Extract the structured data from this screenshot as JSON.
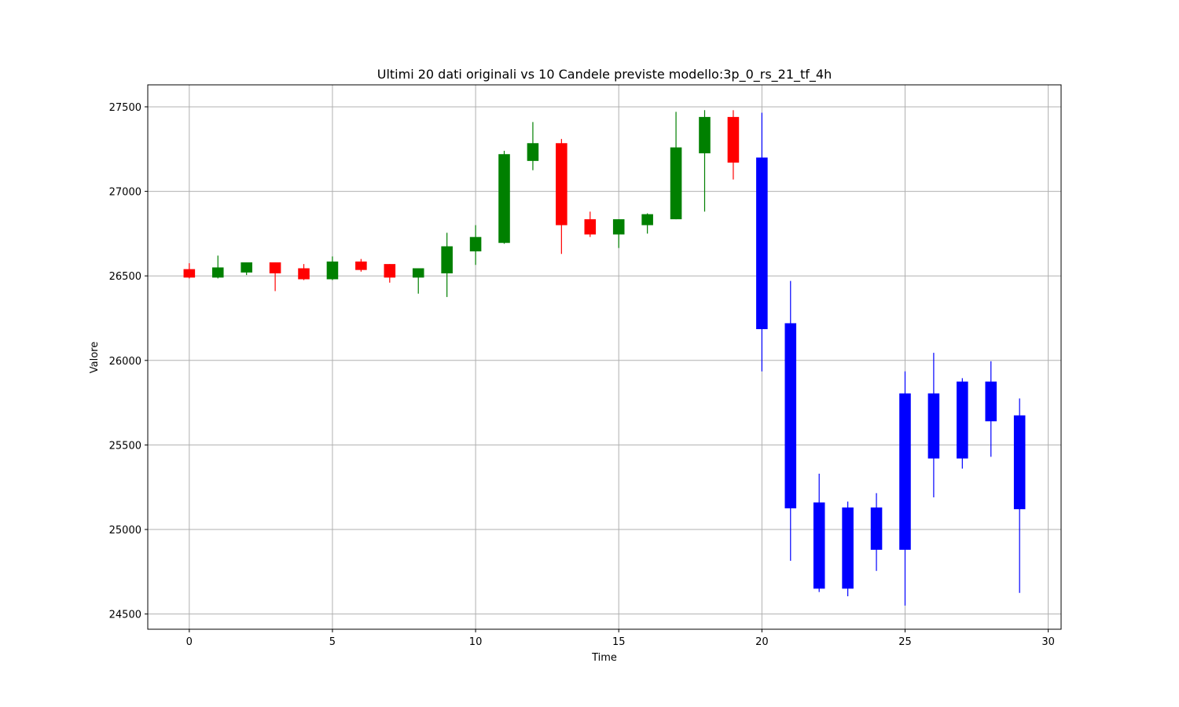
{
  "chart_data": {
    "type": "candlestick",
    "title": "Ultimi 20 dati originali vs 10 Candele previste modello:3p_0_rs_21_tf_4h",
    "xlabel": "Time",
    "ylabel": "Valore",
    "xlim": [
      -1.45,
      30.45
    ],
    "ylim": [
      24410,
      27630
    ],
    "x_ticks": [
      0,
      5,
      10,
      15,
      20,
      25,
      30
    ],
    "y_ticks": [
      24500,
      25000,
      25500,
      26000,
      26500,
      27000,
      27500
    ],
    "grid": true,
    "colors": {
      "up": "#008000",
      "down": "#ff0000",
      "forecast": "#0000ff",
      "grid": "#b0b0b0",
      "axes": "#000000"
    },
    "series": [
      {
        "name": "",
        "kind": "original",
        "candles": [
          {
            "x": 0,
            "open": 26540,
            "high": 26575,
            "low": 26485,
            "close": 26490
          },
          {
            "x": 1,
            "open": 26490,
            "high": 26620,
            "low": 26485,
            "close": 26550
          },
          {
            "x": 2,
            "open": 26520,
            "high": 26580,
            "low": 26505,
            "close": 26580
          },
          {
            "x": 3,
            "open": 26580,
            "high": 26580,
            "low": 26410,
            "close": 26515
          },
          {
            "x": 4,
            "open": 26545,
            "high": 26570,
            "low": 26475,
            "close": 26480
          },
          {
            "x": 5,
            "open": 26480,
            "high": 26615,
            "low": 26475,
            "close": 26585
          },
          {
            "x": 6,
            "open": 26585,
            "high": 26600,
            "low": 26525,
            "close": 26535
          },
          {
            "x": 7,
            "open": 26570,
            "high": 26570,
            "low": 26460,
            "close": 26490
          },
          {
            "x": 8,
            "open": 26490,
            "high": 26545,
            "low": 26395,
            "close": 26545
          },
          {
            "x": 9,
            "open": 26515,
            "high": 26755,
            "low": 26375,
            "close": 26675
          },
          {
            "x": 10,
            "open": 26645,
            "high": 26800,
            "low": 26565,
            "close": 26730
          },
          {
            "x": 11,
            "open": 26695,
            "high": 27240,
            "low": 26690,
            "close": 27220
          },
          {
            "x": 12,
            "open": 27180,
            "high": 27410,
            "low": 27125,
            "close": 27285
          },
          {
            "x": 13,
            "open": 27285,
            "high": 27310,
            "low": 26630,
            "close": 26800
          },
          {
            "x": 14,
            "open": 26835,
            "high": 26880,
            "low": 26730,
            "close": 26745
          },
          {
            "x": 15,
            "open": 26745,
            "high": 26835,
            "low": 26665,
            "close": 26835
          },
          {
            "x": 16,
            "open": 26800,
            "high": 26870,
            "low": 26750,
            "close": 26865
          },
          {
            "x": 17,
            "open": 26835,
            "high": 27470,
            "low": 26835,
            "close": 27260
          },
          {
            "x": 18,
            "open": 27225,
            "high": 27480,
            "low": 26880,
            "close": 27440
          },
          {
            "x": 19,
            "open": 27440,
            "high": 27480,
            "low": 27070,
            "close": 27170
          }
        ]
      },
      {
        "name": "",
        "kind": "forecast",
        "candles": [
          {
            "x": 20,
            "open": 27200,
            "high": 27465,
            "low": 25935,
            "close": 26185
          },
          {
            "x": 21,
            "open": 26220,
            "high": 26470,
            "low": 24815,
            "close": 25125
          },
          {
            "x": 22,
            "open": 25160,
            "high": 25330,
            "low": 24630,
            "close": 24650
          },
          {
            "x": 23,
            "open": 25130,
            "high": 25165,
            "low": 24605,
            "close": 24650
          },
          {
            "x": 24,
            "open": 25130,
            "high": 25215,
            "low": 24755,
            "close": 24880
          },
          {
            "x": 25,
            "open": 25805,
            "high": 25935,
            "low": 24550,
            "close": 24880
          },
          {
            "x": 26,
            "open": 25805,
            "high": 26045,
            "low": 25190,
            "close": 25420
          },
          {
            "x": 27,
            "open": 25875,
            "high": 25895,
            "low": 25360,
            "close": 25420
          },
          {
            "x": 28,
            "open": 25875,
            "high": 25995,
            "low": 25430,
            "close": 25640
          },
          {
            "x": 29,
            "open": 25675,
            "high": 25775,
            "low": 24625,
            "close": 25120
          }
        ]
      }
    ]
  }
}
